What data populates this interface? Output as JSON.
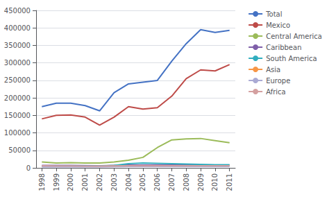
{
  "chart_data": {
    "type": "line",
    "x": [
      1998,
      1999,
      2000,
      2001,
      2002,
      2003,
      2004,
      2005,
      2006,
      2007,
      2008,
      2009,
      2010,
      2011
    ],
    "series": [
      {
        "name": "Total",
        "color": "#4472C4",
        "values": [
          175000,
          185000,
          185000,
          178000,
          163000,
          215000,
          240000,
          245000,
          250000,
          305000,
          355000,
          395000,
          387000,
          393000
        ]
      },
      {
        "name": "Mexico",
        "color": "#BE4B48",
        "values": [
          140000,
          150000,
          151000,
          145000,
          122000,
          145000,
          175000,
          168000,
          172000,
          205000,
          255000,
          280000,
          277000,
          295000
        ]
      },
      {
        "name": "Central America",
        "color": "#9BBB59",
        "values": [
          17000,
          14000,
          15000,
          14000,
          14000,
          17000,
          22000,
          30000,
          58000,
          80000,
          83000,
          84000,
          78000,
          72000
        ]
      },
      {
        "name": "Caribbean",
        "color": "#7F5FA9",
        "values": [
          7000,
          7000,
          7000,
          6500,
          6000,
          7000,
          8000,
          8000,
          8500,
          8500,
          8500,
          8500,
          8000,
          8000
        ]
      },
      {
        "name": "South America",
        "color": "#31AEBF",
        "values": [
          5000,
          5000,
          5000,
          5000,
          5000,
          7000,
          12000,
          14000,
          13000,
          12000,
          11000,
          10000,
          9000,
          9000
        ]
      },
      {
        "name": "Asia",
        "color": "#F79646",
        "values": [
          4000,
          4000,
          4000,
          4000,
          4000,
          5000,
          6000,
          6000,
          6000,
          6000,
          6000,
          6000,
          6000,
          6000
        ]
      },
      {
        "name": "Europe",
        "color": "#AAAAD4",
        "values": [
          3000,
          3000,
          3000,
          3000,
          3000,
          3500,
          4000,
          4000,
          4000,
          4000,
          4000,
          4000,
          4000,
          4000
        ]
      },
      {
        "name": "Africa",
        "color": "#D4A0A0",
        "values": [
          6000,
          5500,
          5500,
          5000,
          5000,
          5500,
          6000,
          6000,
          6000,
          6000,
          6000,
          6000,
          6000,
          6000
        ]
      }
    ],
    "xlim": [
      1997.6,
      2011.4
    ],
    "xticks": [
      1998,
      1999,
      2000,
      2001,
      2002,
      2003,
      2004,
      2005,
      2006,
      2007,
      2008,
      2009,
      2010,
      2011
    ],
    "ylim": [
      0,
      450000
    ],
    "yticks": [
      0,
      50000,
      100000,
      150000,
      200000,
      250000,
      300000,
      350000,
      400000,
      450000
    ],
    "grid": true,
    "legend": "right"
  }
}
